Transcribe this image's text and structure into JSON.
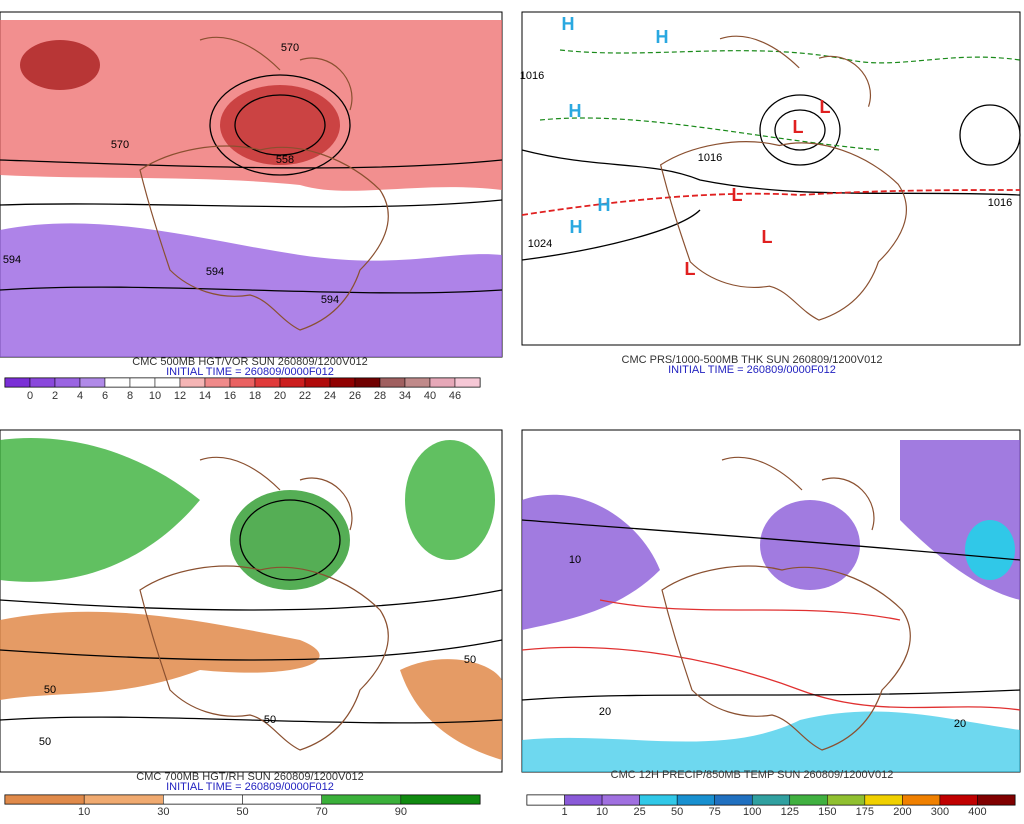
{
  "panels": [
    {
      "caption": "CMC 500MB HGT/VOR SUN 260809/1200V012",
      "initial": "INITIAL TIME = 260809/0000F012",
      "colorbar": {
        "labels": [
          0,
          2,
          4,
          6,
          8,
          10,
          12,
          14,
          16,
          18,
          20,
          22,
          24,
          26,
          28,
          34,
          40,
          46
        ],
        "colors": [
          "#7a2fd6",
          "#8a48dc",
          "#9a64e2",
          "#b08ae8",
          "#ffffff",
          "#ffffff",
          "#ffffff",
          "#f5b5b5",
          "#f08a8a",
          "#ea6262",
          "#e03a3a",
          "#cc1e1e",
          "#b00a0a",
          "#900000",
          "#700000",
          "#a06060",
          "#c08a8a",
          "#e6a8b8",
          "#f6c8d6"
        ]
      },
      "map_labels": [
        "570",
        "558",
        "570",
        "594",
        "594",
        "594"
      ]
    },
    {
      "caption": "CMC PRS/1000-500MB THK SUN 260809/1200V012",
      "initial": "INITIAL TIME = 260809/0000F012",
      "map_labels": [
        "H",
        "H",
        "H",
        "H",
        "H",
        "L",
        "L",
        "L",
        "L",
        "L",
        "1016",
        "1024",
        "1016",
        "1016"
      ]
    },
    {
      "caption": "CMC 700MB HGT/RH SUN 260809/1200V012",
      "initial": "INITIAL TIME = 260809/0000F012",
      "colorbar": {
        "labels": [
          10,
          30,
          50,
          70,
          90
        ],
        "colors": [
          "#e08a4a",
          "#f0aa70",
          "#ffffff",
          "#ffffff",
          "#3ab03a",
          "#108a10"
        ]
      },
      "map_labels": [
        "50",
        "50",
        "50",
        "50"
      ]
    },
    {
      "caption": "CMC 12H PRECIP/850MB TEMP SUN 260809/1200V012",
      "colorbar": {
        "labels": [
          1,
          10,
          25,
          50,
          75,
          100,
          125,
          150,
          175,
          200,
          300,
          400
        ],
        "colors": [
          "#ffffff",
          "#8a5ad8",
          "#a070e0",
          "#30c8e8",
          "#1890d0",
          "#2070c0",
          "#30a0a0",
          "#40b040",
          "#90c030",
          "#f0d000",
          "#f08000",
          "#c00000",
          "#800000"
        ]
      },
      "map_labels": [
        "20",
        "20",
        "10"
      ]
    }
  ]
}
